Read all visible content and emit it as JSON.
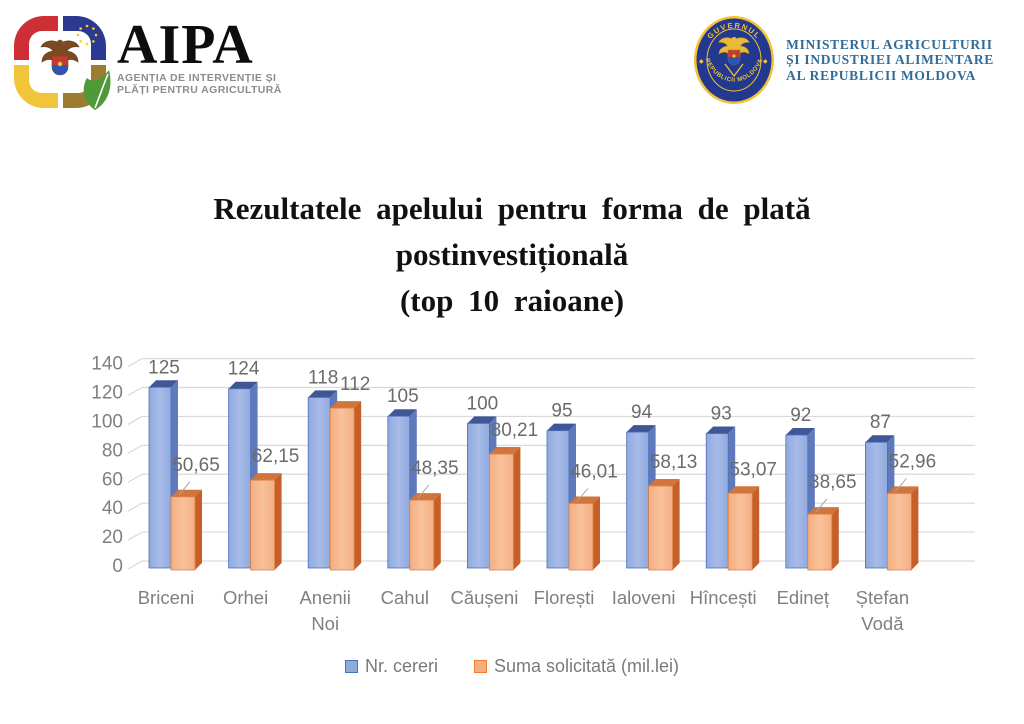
{
  "header": {
    "aipa": {
      "name": "AIPA",
      "tagline_line1": "AGENȚIA DE INTERVENȚIE ȘI",
      "tagline_line2": "PLĂȚI PENTRU AGRICULTURĂ"
    },
    "ministry": {
      "line1": "MINISTERUL AGRICULTURII",
      "line2": "ȘI INDUSTRIEI ALIMENTARE",
      "line3": "AL REPUBLICII MOLDOVA",
      "seal_top": "GUVERNUL",
      "seal_bottom": "REPUBLICII MOLDOVA"
    }
  },
  "title": {
    "line1": "Rezultatele apelului pentru forma de plată",
    "line2": "postinvestițională",
    "line3": "(top 10 raioane)"
  },
  "chart_data": {
    "type": "bar",
    "style": "3d-clustered-column",
    "categories": [
      "Briceni",
      "Orhei",
      "Anenii Noi",
      "Cahul",
      "Căușeni",
      "Florești",
      "Ialoveni",
      "Hîncești",
      "Edineț",
      "Ștefan Vodă"
    ],
    "series": [
      {
        "name": "Nr. cereri",
        "values": [
          125,
          124,
          118,
          105,
          100,
          95,
          94,
          93,
          92,
          87
        ],
        "labels": [
          "125",
          "124",
          "118",
          "105",
          "100",
          "95",
          "94",
          "93",
          "92",
          "87"
        ],
        "color": "#8FAADC",
        "edge": "#4C70BE",
        "side": "#5E79BC",
        "top": "#3F5795"
      },
      {
        "name": "Suma solicitată (mil.lei)",
        "values": [
          50.65,
          62.15,
          112,
          48.35,
          80.21,
          46.01,
          58.13,
          53.07,
          38.65,
          52.96
        ],
        "labels": [
          "50,65",
          "62,15",
          "112",
          "48,35",
          "80,21",
          "46,01",
          "58,13",
          "53,07",
          "38,65",
          "52,96"
        ],
        "color": "#F4AE82",
        "edge": "#DE8046",
        "side": "#C65F28",
        "top": "#D0753B"
      }
    ],
    "ylim": [
      0,
      140
    ],
    "ytick_step": 20,
    "yticks": [
      "0",
      "20",
      "40",
      "60",
      "80",
      "100",
      "120",
      "140"
    ],
    "grid": true,
    "legend_position": "bottom",
    "axis_text_color": "#808080",
    "data_label_color": "#6B6B6B",
    "gridline_color": "#D9D9D9"
  }
}
